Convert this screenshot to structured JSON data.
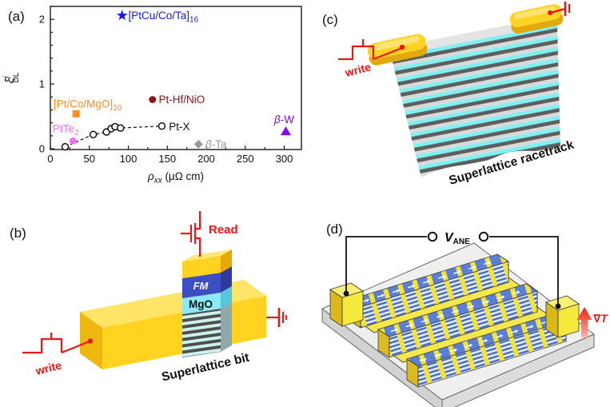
{
  "figure": {
    "background": "#ffffff"
  },
  "panels": {
    "a": {
      "tag": "(a)"
    },
    "b": {
      "tag": "(b)",
      "read_label": "Read",
      "write_label": "write",
      "fm_label": "FM",
      "mgo_label": "MgO",
      "caption": "Superlattice bit"
    },
    "c": {
      "tag": "(c)",
      "write_label": "write",
      "caption": "Superlattice racetrack"
    },
    "d": {
      "tag": "(d)",
      "voltage_base": "V",
      "voltage_sub": "ANE",
      "gradient_nabla": "∇",
      "gradient_t": "T"
    }
  },
  "colors": {
    "accent_red": "#ee1515",
    "gold": "#ffd320",
    "fm_blue": "#3c4ec4",
    "mgo_cyan": "#8ce9f6",
    "racetrack_cyan": "#7df2f2",
    "bit_blue": "#5b7fd4"
  },
  "chart_data": {
    "type": "scatter",
    "xlabel_parts": [
      {
        "t": "ρ",
        "italic": true
      },
      {
        "t": "xx",
        "sub": true,
        "italic": true
      },
      {
        "t": " (μΩ cm)"
      }
    ],
    "ylabel": {
      "base": "ξ",
      "sup": "j",
      "sub": "DL"
    },
    "xlim": [
      0,
      322
    ],
    "ylim": [
      0,
      2.2
    ],
    "xticks": [
      0,
      50,
      100,
      150,
      200,
      250,
      300
    ],
    "yticks": [
      0,
      1,
      2
    ],
    "x_minor_step": 25,
    "y_minor_step": 0.2,
    "grid": false,
    "legend": "none (direct point labels)",
    "series": [
      {
        "name": "Pt-X",
        "marker": "circle-open",
        "color": "#111111",
        "line": "dashed",
        "points": [
          [
            19,
            0.03
          ],
          [
            55,
            0.22
          ],
          [
            72,
            0.26
          ],
          [
            78,
            0.31
          ],
          [
            83,
            0.34
          ],
          [
            90,
            0.32
          ],
          [
            143,
            0.35
          ]
        ],
        "label": {
          "parts": [
            {
              "t": "Pt-X"
            }
          ],
          "at": [
            152,
            0.34
          ],
          "anchor": "start"
        }
      },
      {
        "name": "PtTe2",
        "marker": "circle",
        "color": "#f36ef3",
        "points": [
          [
            29,
            0.12
          ]
        ],
        "label": {
          "parts": [
            {
              "t": "PtTe"
            },
            {
              "t": "2",
              "sub": true
            }
          ],
          "at": [
            3,
            0.31
          ],
          "anchor": "start"
        }
      },
      {
        "name": "[Pt/Co/MgO]10",
        "marker": "square",
        "color": "#ff8c19",
        "points": [
          [
            33,
            0.54
          ]
        ],
        "label": {
          "parts": [
            {
              "t": "[Pt/Co/MgO]"
            },
            {
              "t": "10",
              "sub": true
            }
          ],
          "at": [
            4,
            0.69
          ],
          "anchor": "start"
        }
      },
      {
        "name": "Pt-Hf/NiO",
        "marker": "circle",
        "color": "#8b1414",
        "points": [
          [
            131,
            0.76
          ]
        ],
        "label": {
          "parts": [
            {
              "t": "Pt-Hf/NiO"
            }
          ],
          "at": [
            139,
            0.76
          ],
          "anchor": "start"
        }
      },
      {
        "name": "[PtCu/Co/Ta]16",
        "marker": "star",
        "color": "#1919e8",
        "points": [
          [
            92,
            2.06
          ]
        ],
        "label": {
          "parts": [
            {
              "t": "[PtCu/Co/Ta]"
            },
            {
              "t": "16",
              "sub": true
            }
          ],
          "at": [
            100,
            2.06
          ],
          "anchor": "start"
        }
      },
      {
        "name": "β-Ta",
        "marker": "diamond",
        "color": "#989898",
        "points": [
          [
            190,
            0.07
          ]
        ],
        "label": {
          "parts": [
            {
              "t": "β",
              "italic": true
            },
            {
              "t": "-Ta"
            }
          ],
          "at": [
            199,
            0.07
          ],
          "anchor": "start"
        }
      },
      {
        "name": "β-W",
        "marker": "triangle",
        "color": "#8409ef",
        "points": [
          [
            302,
            0.27
          ]
        ],
        "label": {
          "parts": [
            {
              "t": "β",
              "italic": true
            },
            {
              "t": "-W"
            }
          ],
          "at": [
            300,
            0.45
          ],
          "anchor": "middle"
        }
      }
    ]
  }
}
